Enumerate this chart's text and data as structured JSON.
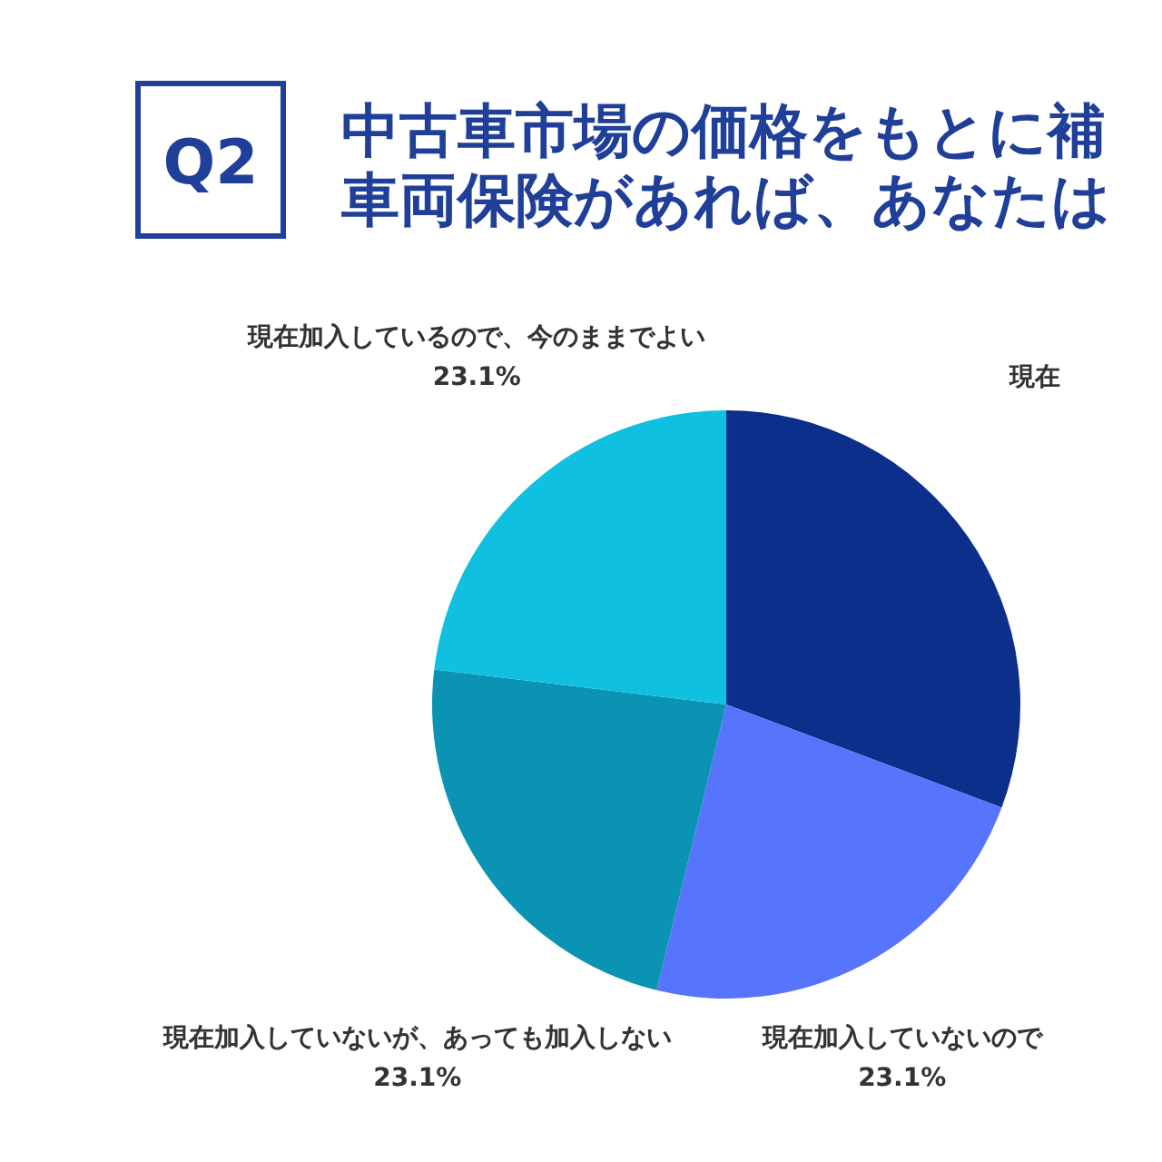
{
  "chart_data": {
    "type": "pie",
    "title": "中古車市場の価格をもとに補車両保険があれば、あなたは",
    "annotations": [
      "Q2"
    ],
    "categories": [
      "現在",
      "現在加入していないので",
      "現在加入していないが、あっても加入しない",
      "現在加入しているので、今のままでよい"
    ],
    "values": [
      30.7,
      23.1,
      23.1,
      23.1
    ],
    "colors": [
      "#0c2f8b",
      "#5674fc",
      "#0a93b3",
      "#10c0e0"
    ],
    "value_labels": [
      null,
      "23.1%",
      "23.1%",
      "23.1%"
    ]
  }
}
